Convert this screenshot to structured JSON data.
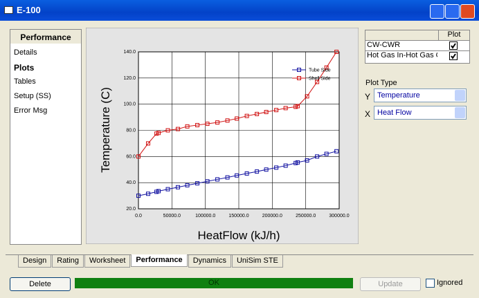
{
  "window": {
    "title": "E-100"
  },
  "sidebar": {
    "header": "Performance",
    "items": [
      "Details",
      "Plots",
      "Tables",
      "Setup (SS)",
      "Error Msg"
    ],
    "selected": 1
  },
  "chart_data": {
    "type": "line",
    "xlabel": "HeatFlow (kJ/h)",
    "ylabel": "Temperature (C)",
    "x": [
      0,
      14500,
      27000,
      30000,
      44000,
      59000,
      73000,
      88000,
      103000,
      118000,
      133000,
      147000,
      162000,
      177000,
      191000,
      206000,
      220000,
      235000,
      238000,
      252000,
      267000,
      281000,
      296000
    ],
    "series": [
      {
        "name": "Tube Side",
        "color": "#1010a0",
        "values": [
          30,
          31.5,
          33,
          33.5,
          35,
          36.5,
          38,
          39.5,
          41,
          42.5,
          44,
          45.5,
          47,
          48.5,
          50,
          51.5,
          53,
          55,
          55.5,
          57,
          60,
          62,
          64
        ]
      },
      {
        "name": "Shell Side",
        "color": "#d01010",
        "values": [
          60,
          70,
          77.5,
          78,
          80,
          81,
          83,
          84,
          85,
          86,
          87.5,
          89,
          91,
          92.5,
          94,
          95.5,
          97,
          98,
          98.5,
          106,
          117,
          128,
          140
        ]
      }
    ],
    "xlim": [
      0,
      300000
    ],
    "ylim": [
      20,
      140
    ],
    "xticks": [
      {
        "value": 0,
        "label": "0.0"
      },
      {
        "value": 50000,
        "label": "50000.0"
      },
      {
        "value": 100000,
        "label": "100000.0"
      },
      {
        "value": 150000,
        "label": "150000.0"
      },
      {
        "value": 200000,
        "label": "200000.0"
      },
      {
        "value": 250000,
        "label": "250000.0"
      },
      {
        "value": 300000,
        "label": "300000.0"
      }
    ],
    "yticks": [
      {
        "value": 20,
        "label": "20.0"
      },
      {
        "value": 40,
        "label": "40.0"
      },
      {
        "value": 60,
        "label": "60.0"
      },
      {
        "value": 80,
        "label": "80.0"
      },
      {
        "value": 100,
        "label": "100.0"
      },
      {
        "value": 120,
        "label": "120.0"
      },
      {
        "value": 140,
        "label": "140.0"
      }
    ],
    "grid": true,
    "legend": "top-right"
  },
  "plot_table": {
    "header": "Plot",
    "rows": [
      {
        "name": "CW-CWR",
        "checked": true
      },
      {
        "name": "Hot Gas In-Hot Gas O",
        "checked": true
      }
    ]
  },
  "plot_type": {
    "label": "Plot Type",
    "y_label": "Y",
    "y_value": "Temperature",
    "x_label": "X",
    "x_value": "Heat Flow"
  },
  "tabs": {
    "items": [
      "Design",
      "Rating",
      "Worksheet",
      "Performance",
      "Dynamics",
      "UniSim STE"
    ],
    "selected": 3
  },
  "footer": {
    "delete": "Delete",
    "status": "OK",
    "update": "Update",
    "ignored": "Ignored"
  }
}
